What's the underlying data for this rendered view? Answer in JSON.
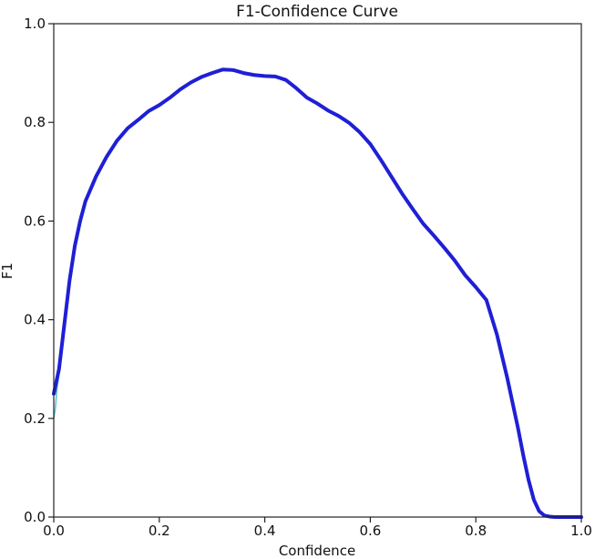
{
  "chart_data": {
    "type": "line",
    "title": "F1-Confidence Curve",
    "xlabel": "Confidence",
    "ylabel": "F1",
    "xlim": [
      0.0,
      1.0
    ],
    "ylim": [
      0.0,
      1.0
    ],
    "xticks": [
      "0.0",
      "0.2",
      "0.4",
      "0.6",
      "0.8",
      "1.0"
    ],
    "yticks": [
      "0.0",
      "0.2",
      "0.4",
      "0.6",
      "0.8",
      "1.0"
    ],
    "grid": false,
    "legend": "none",
    "series": [
      {
        "role": "thin-curve",
        "color": "#5bc0de",
        "x": [
          0.0,
          0.003,
          0.006,
          0.01,
          0.02,
          0.03,
          0.04,
          0.05,
          0.06,
          0.08,
          0.1,
          0.12,
          0.14,
          0.16,
          0.18,
          0.2,
          0.22,
          0.24,
          0.26,
          0.28,
          0.3,
          0.32,
          0.34,
          0.36,
          0.38,
          0.4,
          0.42,
          0.44,
          0.46,
          0.48,
          0.5,
          0.52,
          0.54,
          0.56,
          0.58,
          0.6,
          0.62,
          0.64,
          0.66,
          0.68,
          0.7,
          0.72,
          0.74,
          0.76,
          0.78,
          0.8,
          0.82,
          0.84,
          0.86,
          0.88,
          0.89,
          0.9,
          0.91,
          0.92,
          0.93,
          0.94,
          0.95,
          1.0
        ],
        "y": [
          0.2,
          0.22,
          0.26,
          0.29,
          0.39,
          0.48,
          0.55,
          0.6,
          0.64,
          0.69,
          0.73,
          0.765,
          0.79,
          0.805,
          0.825,
          0.835,
          0.85,
          0.868,
          0.882,
          0.893,
          0.9,
          0.908,
          0.905,
          0.898,
          0.895,
          0.894,
          0.893,
          0.885,
          0.868,
          0.85,
          0.84,
          0.825,
          0.815,
          0.8,
          0.78,
          0.755,
          0.725,
          0.69,
          0.655,
          0.625,
          0.595,
          0.572,
          0.545,
          0.52,
          0.49,
          0.465,
          0.44,
          0.37,
          0.28,
          0.18,
          0.125,
          0.075,
          0.035,
          0.012,
          0.003,
          0.001,
          0.0,
          0.0
        ]
      },
      {
        "role": "thick-curve",
        "color": "#1f1fd6",
        "x": [
          0.0,
          0.01,
          0.02,
          0.03,
          0.04,
          0.05,
          0.06,
          0.08,
          0.1,
          0.12,
          0.14,
          0.16,
          0.18,
          0.2,
          0.22,
          0.24,
          0.26,
          0.28,
          0.3,
          0.32,
          0.34,
          0.36,
          0.38,
          0.4,
          0.42,
          0.44,
          0.46,
          0.48,
          0.5,
          0.52,
          0.54,
          0.56,
          0.58,
          0.6,
          0.62,
          0.64,
          0.66,
          0.68,
          0.7,
          0.72,
          0.74,
          0.76,
          0.78,
          0.8,
          0.82,
          0.84,
          0.86,
          0.88,
          0.89,
          0.9,
          0.91,
          0.92,
          0.93,
          0.94,
          0.95,
          1.0
        ],
        "y": [
          0.25,
          0.3,
          0.39,
          0.48,
          0.55,
          0.6,
          0.64,
          0.69,
          0.73,
          0.763,
          0.788,
          0.805,
          0.823,
          0.835,
          0.85,
          0.867,
          0.881,
          0.892,
          0.9,
          0.907,
          0.906,
          0.9,
          0.896,
          0.894,
          0.893,
          0.886,
          0.869,
          0.85,
          0.838,
          0.824,
          0.813,
          0.799,
          0.78,
          0.756,
          0.724,
          0.69,
          0.656,
          0.625,
          0.595,
          0.571,
          0.546,
          0.52,
          0.49,
          0.466,
          0.44,
          0.37,
          0.28,
          0.18,
          0.125,
          0.075,
          0.035,
          0.012,
          0.003,
          0.001,
          0.0,
          0.0
        ]
      }
    ]
  }
}
